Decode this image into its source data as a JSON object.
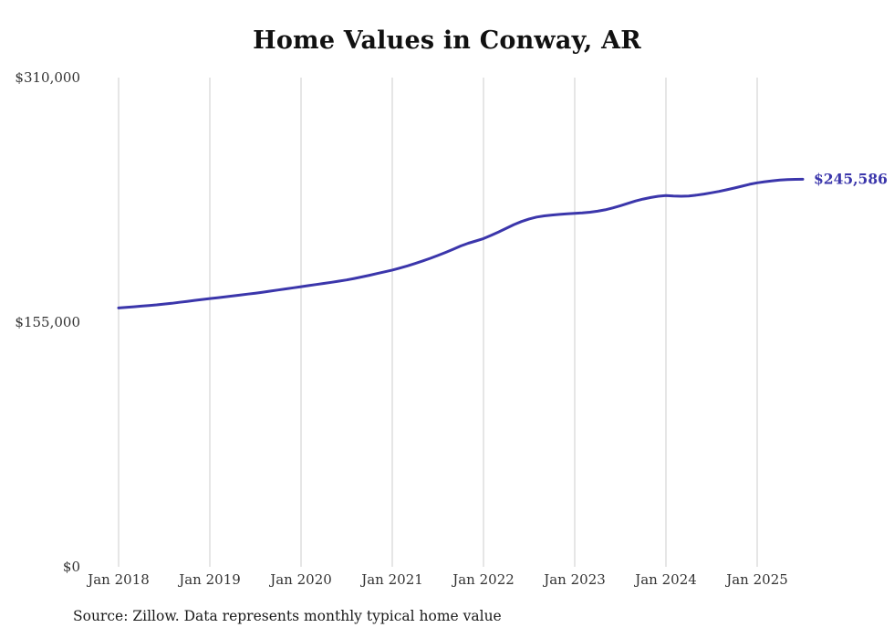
{
  "chart_data": {
    "type": "line",
    "title": "Home Values in Conway, AR",
    "source_note": "Source: Zillow. Data represents monthly typical home value",
    "series_name": "Monthly typical home value",
    "end_label": "$245,586",
    "end_value": 245586,
    "line_color": "#3b36ab",
    "grid_color": "#cccccc",
    "axis_text_color": "#333333",
    "grid": "vertical-only",
    "legend": "none",
    "ylim": [
      0,
      310000
    ],
    "y_ticks": [
      {
        "value": 0,
        "label": "$0"
      },
      {
        "value": 155000,
        "label": "$155,000"
      },
      {
        "value": 310000,
        "label": "$310,000"
      }
    ],
    "x_ticks": [
      "Jan 2018",
      "Jan 2019",
      "Jan 2020",
      "Jan 2021",
      "Jan 2022",
      "Jan 2023",
      "Jan 2024",
      "Jan 2025"
    ],
    "months": [
      "2018-01",
      "2018-02",
      "2018-03",
      "2018-04",
      "2018-05",
      "2018-06",
      "2018-07",
      "2018-08",
      "2018-09",
      "2018-10",
      "2018-11",
      "2018-12",
      "2019-01",
      "2019-02",
      "2019-03",
      "2019-04",
      "2019-05",
      "2019-06",
      "2019-07",
      "2019-08",
      "2019-09",
      "2019-10",
      "2019-11",
      "2019-12",
      "2020-01",
      "2020-02",
      "2020-03",
      "2020-04",
      "2020-05",
      "2020-06",
      "2020-07",
      "2020-08",
      "2020-09",
      "2020-10",
      "2020-11",
      "2020-12",
      "2021-01",
      "2021-02",
      "2021-03",
      "2021-04",
      "2021-05",
      "2021-06",
      "2021-07",
      "2021-08",
      "2021-09",
      "2021-10",
      "2021-11",
      "2021-12",
      "2022-01",
      "2022-02",
      "2022-03",
      "2022-04",
      "2022-05",
      "2022-06",
      "2022-07",
      "2022-08",
      "2022-09",
      "2022-10",
      "2022-11",
      "2022-12",
      "2023-01",
      "2023-02",
      "2023-03",
      "2023-04",
      "2023-05",
      "2023-06",
      "2023-07",
      "2023-08",
      "2023-09",
      "2023-10",
      "2023-11",
      "2023-12",
      "2024-01",
      "2024-02",
      "2024-03",
      "2024-04",
      "2024-05",
      "2024-06",
      "2024-07",
      "2024-08",
      "2024-09",
      "2024-10",
      "2024-11",
      "2024-12",
      "2025-01",
      "2025-02",
      "2025-03",
      "2025-04",
      "2025-05",
      "2025-06",
      "2025-07"
    ],
    "values": [
      164000,
      164400,
      164800,
      165200,
      165600,
      166000,
      166500,
      167000,
      167600,
      168200,
      168800,
      169400,
      170000,
      170500,
      171000,
      171600,
      172200,
      172800,
      173400,
      174000,
      174700,
      175400,
      176100,
      176800,
      177500,
      178200,
      178900,
      179600,
      180300,
      181000,
      181800,
      182700,
      183700,
      184700,
      185800,
      186900,
      188000,
      189300,
      190700,
      192200,
      193800,
      195500,
      197300,
      199200,
      201200,
      203300,
      205000,
      206500,
      208000,
      210000,
      212200,
      214500,
      216800,
      218800,
      220400,
      221600,
      222400,
      222900,
      223300,
      223700,
      224000,
      224300,
      224700,
      225300,
      226200,
      227400,
      228800,
      230300,
      231800,
      233000,
      234000,
      234800,
      235300,
      235000,
      234800,
      235000,
      235500,
      236200,
      237000,
      237900,
      238900,
      240000,
      241200,
      242400,
      243300,
      244000,
      244600,
      245100,
      245400,
      245500,
      245586
    ]
  }
}
